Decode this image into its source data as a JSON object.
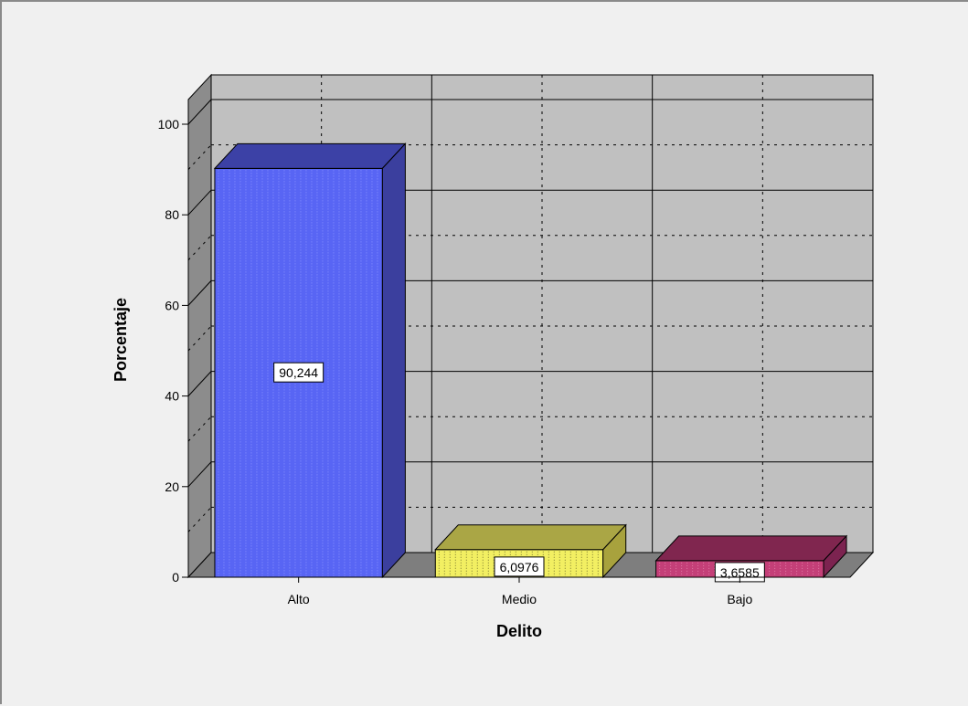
{
  "chart_data": {
    "type": "bar",
    "style": "3d",
    "categories": [
      "Alto",
      "Medio",
      "Bajo"
    ],
    "values": [
      90.244,
      6.0976,
      3.6585
    ],
    "data_labels": [
      "90,244",
      "6,0976",
      "3,6585"
    ],
    "xlabel": "Delito",
    "ylabel": "Porcentaje",
    "ylim": [
      0,
      100
    ],
    "y_ticks": [
      0,
      20,
      40,
      60,
      80,
      100
    ],
    "y_tick_labels": [
      "0",
      "20",
      "40",
      "60",
      "80",
      "100"
    ],
    "grid": true,
    "legend": "none",
    "bar_colors": [
      "#5865f4",
      "#f2ef62",
      "#c43f78"
    ],
    "bar_side_colors": [
      "#3b3f9e",
      "#a8a23d",
      "#7c2350"
    ],
    "bar_top_colors": [
      "#3c41a6",
      "#aaa645",
      "#80264f"
    ],
    "wall_color": "#c0c0c0",
    "side_wall_color": "#8c8c8c",
    "floor_color": "#7e7e7e"
  }
}
